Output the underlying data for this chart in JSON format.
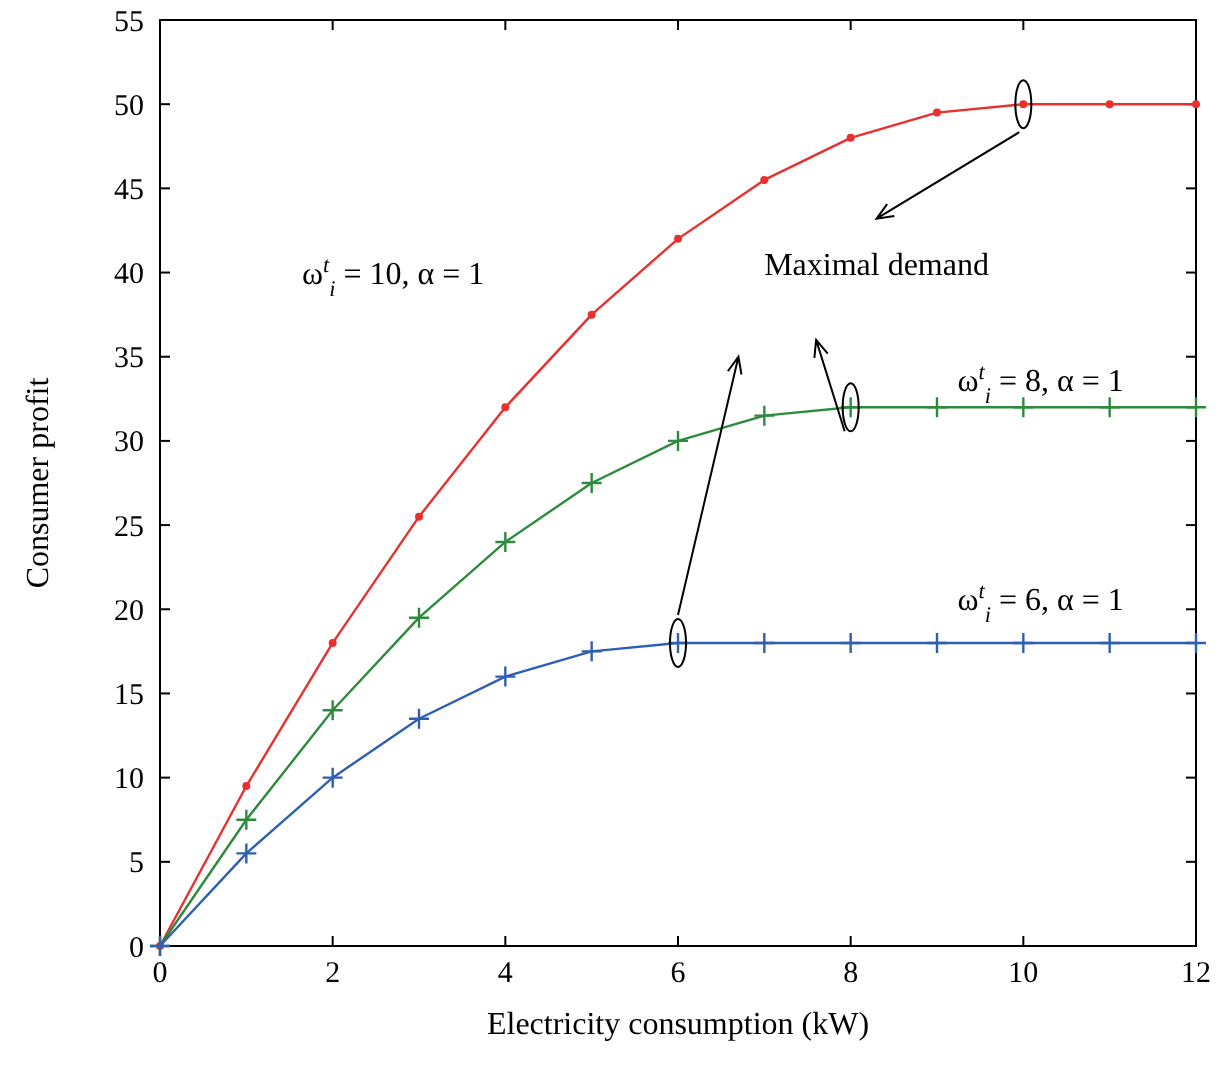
{
  "chart_data": {
    "type": "line",
    "xlabel": "Electricity consumption (kW)",
    "ylabel": "Consumer profit",
    "x": [
      0,
      1,
      2,
      3,
      4,
      5,
      6,
      7,
      8,
      9,
      10,
      11,
      12
    ],
    "xlim": [
      0,
      12
    ],
    "xticks": [
      0,
      2,
      4,
      6,
      8,
      10,
      12
    ],
    "ylim": [
      0,
      55
    ],
    "yticks": [
      0,
      5,
      10,
      15,
      20,
      25,
      30,
      35,
      40,
      45,
      50,
      55
    ],
    "grid": false,
    "line_style": "solid",
    "series": [
      {
        "color": "#e8312f",
        "marker": "circle",
        "values": [
          0,
          9.5,
          18,
          25.5,
          32,
          37.5,
          42,
          45.5,
          48,
          49.5,
          50,
          50,
          50
        ]
      },
      {
        "color": "#2e8b3e",
        "marker": "cross",
        "values": [
          0,
          7.5,
          14,
          19.5,
          24,
          27.5,
          30,
          31.5,
          32,
          32,
          32,
          32,
          32
        ]
      },
      {
        "color": "#2f5fb0",
        "marker": "cross",
        "values": [
          0,
          5.5,
          10,
          13.5,
          16,
          17.5,
          18,
          18,
          18,
          18,
          18,
          18,
          18
        ]
      }
    ],
    "annotations": [
      "ω$^{t}$$_{i}$ = 10, α = 1",
      "Maximal demand",
      "ω$^{t}$$_{i}$ = 8, α = 1",
      "ω$^{t}$$_{i}$ = 6, α = 1"
    ]
  }
}
